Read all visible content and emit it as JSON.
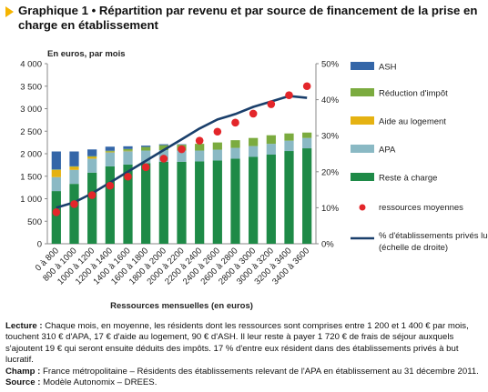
{
  "title": "Graphique 1 • Répartition par revenu et par source de financement de la prise en charge en établissement",
  "notes": {
    "lecture_label": "Lecture :",
    "lecture_text": "Chaque mois, en moyenne, les résidents dont les ressources sont comprises entre 1 200 et 1 400 € par mois, touchent 310 € d'APA, 17 € d'aide au logement, 90 € d'ASH. Il leur reste à payer 1 720 € de frais de séjour auxquels s'ajoutent 19 € qui seront ensuite déduits des impôts. 17 % d'entre eux résident dans des établissements privés à but lucratif.",
    "champ_label": "Champ :",
    "champ_text": "France métropolitaine – Résidents des établissements relevant de l'APA en établissement au 31 décembre 2011.",
    "source_label": "Source :",
    "source_text": "Modèle Autonomix – DREES."
  },
  "chart_data": {
    "type": "bar",
    "stacked": true,
    "unit_label": "En euros, par mois",
    "xlabel": "Ressources mensuelles (en euros)",
    "categories": [
      "0 à 800",
      "800 à 1000",
      "1000 à 1200",
      "1200 à 1400",
      "1400 à 1600",
      "1600 à 1800",
      "1800 à 2000",
      "2000 à 2200",
      "2200 à 2400",
      "2400 à 2600",
      "2600 à 2800",
      "2800 à 3000",
      "3000 à 3200",
      "3200 à 3400",
      "3400 à 3600"
    ],
    "ylim": [
      0,
      4000
    ],
    "yticks": [
      "0",
      "500",
      "1 000",
      "1 500",
      "2 000",
      "2 500",
      "3 000",
      "3 500",
      "4 000"
    ],
    "y2lim": [
      0,
      0.5
    ],
    "y2ticks": [
      "0%",
      "10%",
      "20%",
      "30%",
      "40%",
      "50%"
    ],
    "series": [
      {
        "name": "Reste à charge",
        "color": "#1e8a47",
        "values": [
          1170,
          1330,
          1580,
          1720,
          1760,
          1790,
          1820,
          1820,
          1830,
          1850,
          1890,
          1930,
          1980,
          2060,
          2120
        ]
      },
      {
        "name": "APA",
        "color": "#8ab9c4",
        "values": [
          310,
          310,
          310,
          310,
          300,
          280,
          260,
          250,
          240,
          240,
          240,
          240,
          240,
          230,
          230
        ]
      },
      {
        "name": "Aide au logement",
        "color": "#e5b212",
        "values": [
          160,
          70,
          40,
          17,
          5,
          0,
          0,
          0,
          0,
          0,
          0,
          0,
          0,
          0,
          0
        ]
      },
      {
        "name": "Réduction d'impôt",
        "color": "#7bab3f",
        "values": [
          10,
          10,
          15,
          19,
          40,
          80,
          110,
          130,
          150,
          160,
          170,
          180,
          190,
          160,
          120
        ]
      },
      {
        "name": "ASH",
        "color": "#3466a8",
        "values": [
          400,
          330,
          150,
          90,
          60,
          30,
          20,
          10,
          0,
          0,
          0,
          0,
          0,
          0,
          0
        ]
      }
    ],
    "points": {
      "name": "ressources moyennes",
      "color": "#e3262a",
      "values": [
        700,
        880,
        1080,
        1290,
        1490,
        1700,
        1890,
        2100,
        2290,
        2490,
        2690,
        2890,
        3100,
        3300,
        3500
      ]
    },
    "line": {
      "name": "% d'établissements privés lucratifs (échelle de droite)",
      "color": "#1a3f6b",
      "values": [
        0.1,
        0.115,
        0.14,
        0.17,
        0.2,
        0.23,
        0.26,
        0.29,
        0.32,
        0.345,
        0.36,
        0.38,
        0.395,
        0.41,
        0.405
      ]
    },
    "legend_position": "right",
    "grid": false
  }
}
